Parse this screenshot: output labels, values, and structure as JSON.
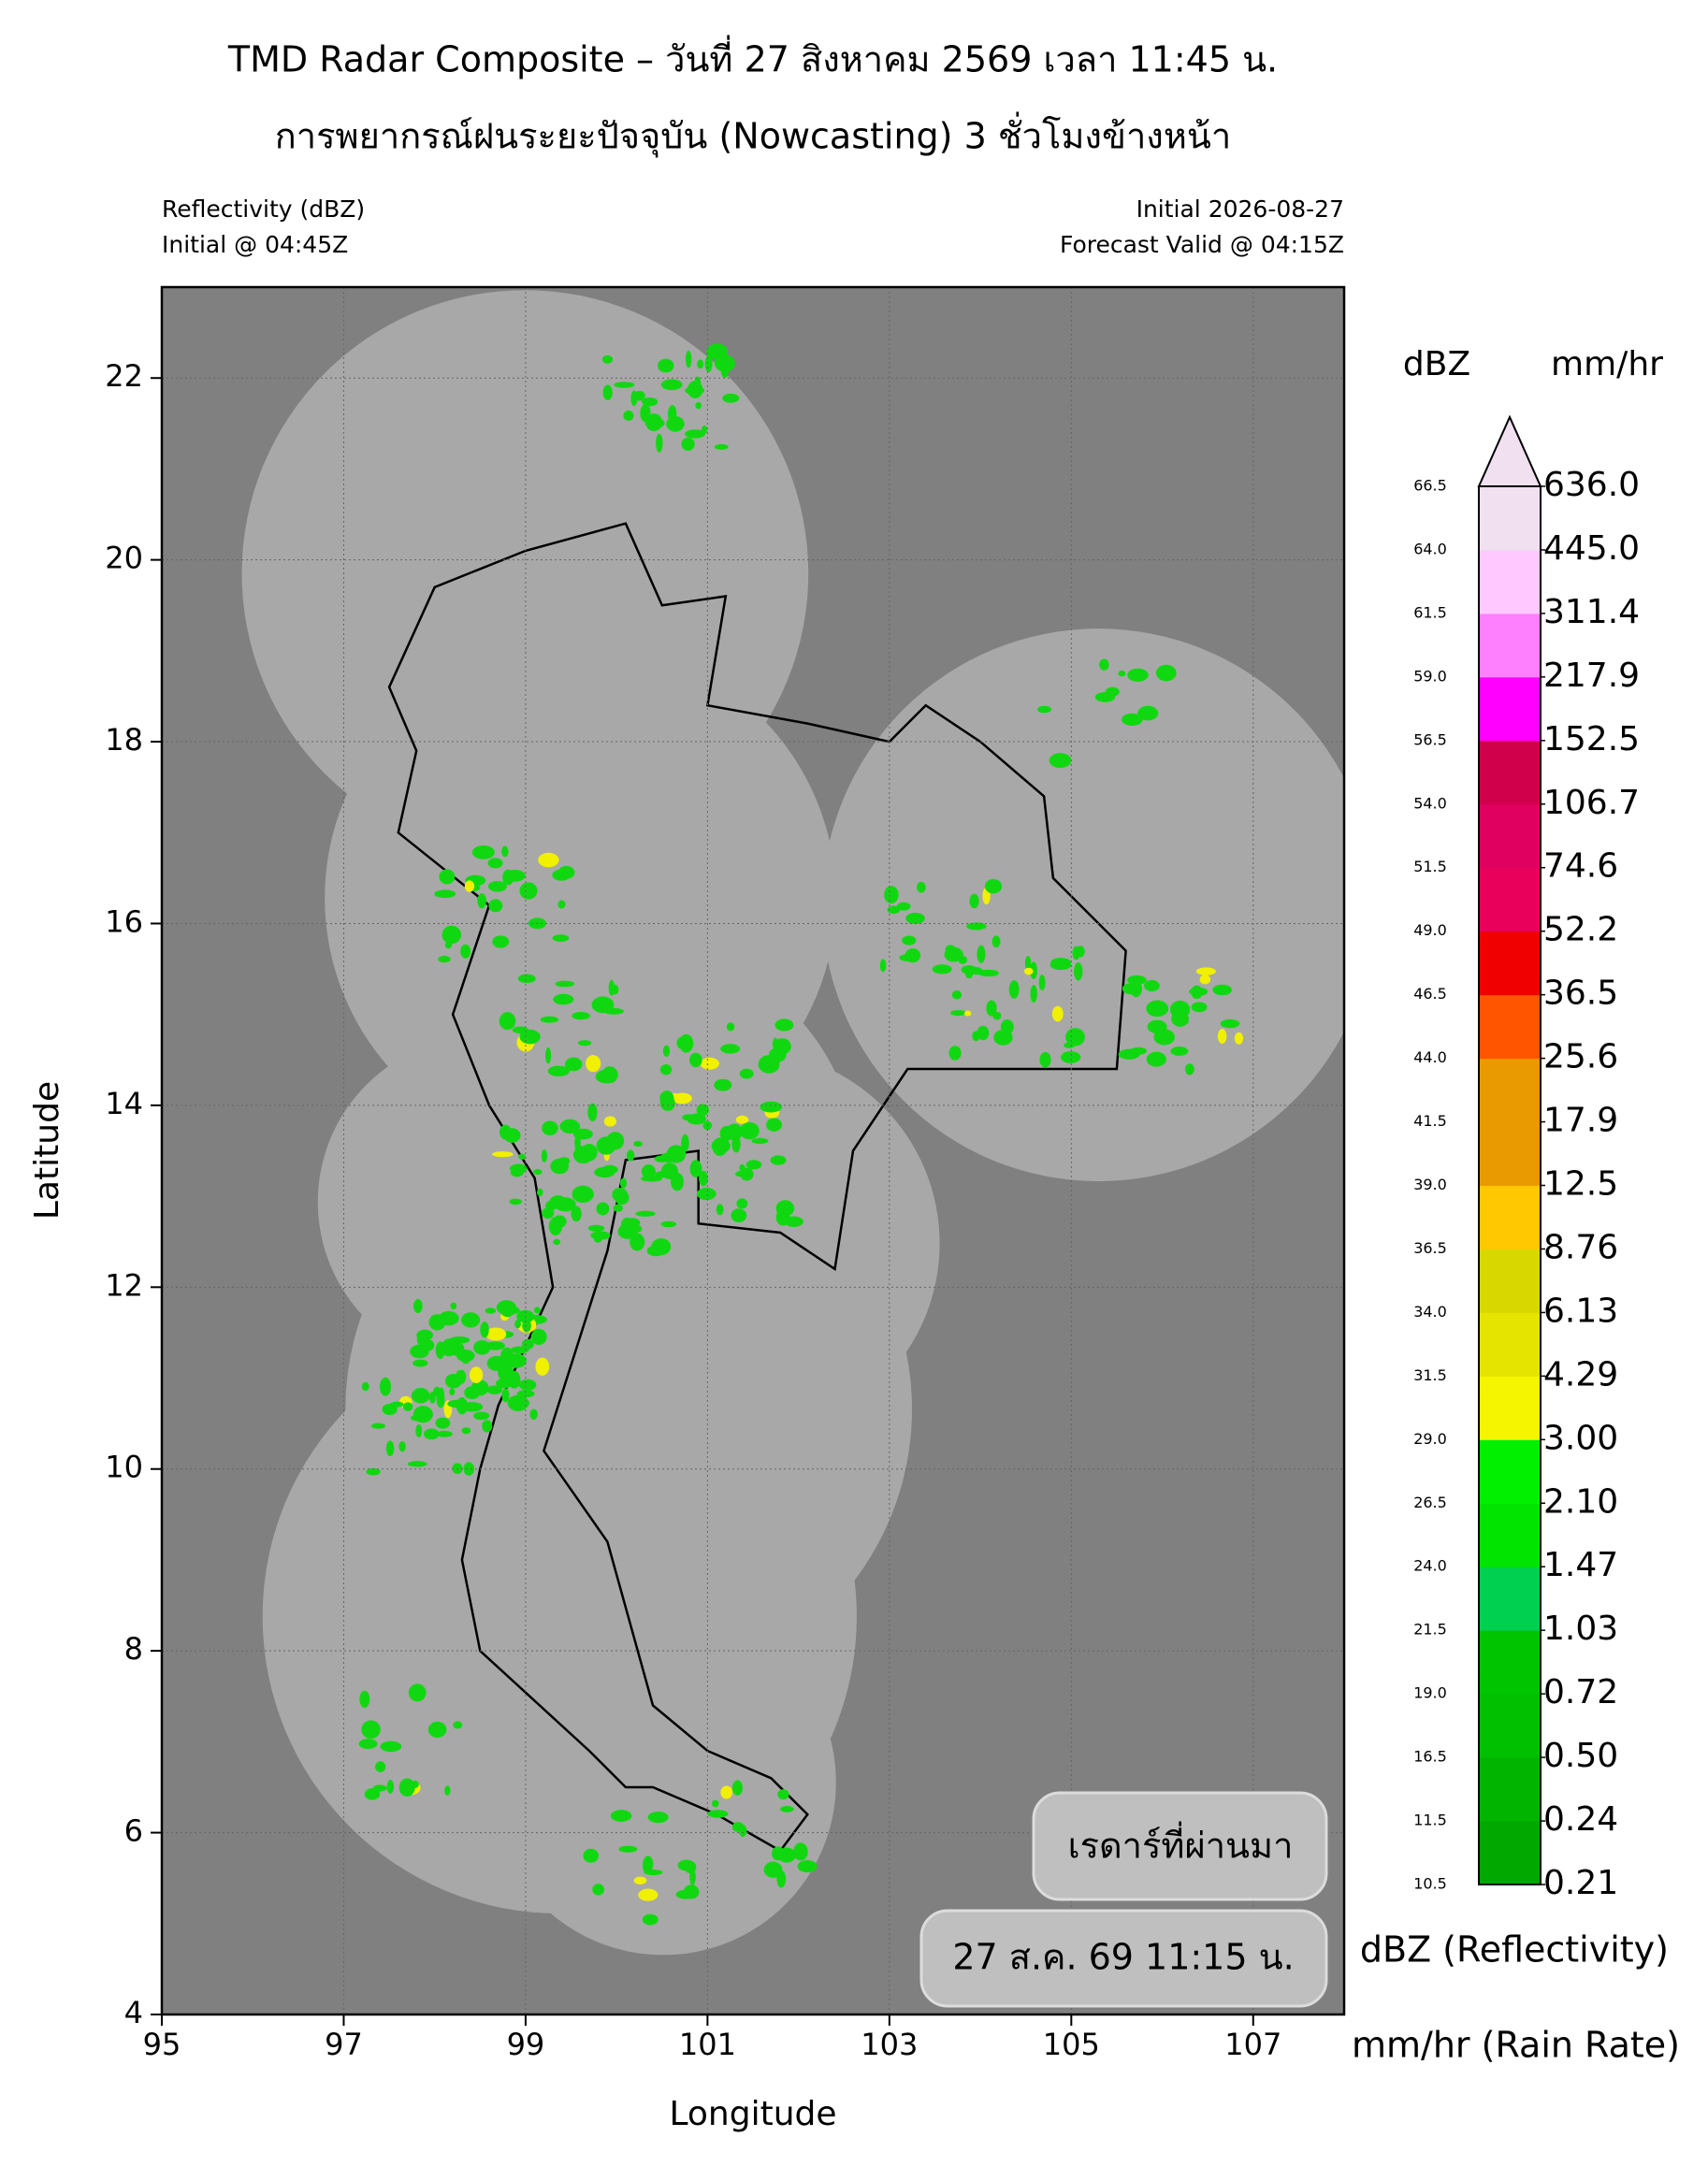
{
  "chart_data": {
    "type": "radar-map",
    "title": "TMD Radar Composite – วันที่ 27 สิงหาคม 2569 เวลา 11:45 น.",
    "subtitle": "การพยากรณ์ฝนระยะปัจจุบัน (Nowcasting) 3 ชั่วโมงข้างหน้า",
    "left_info": [
      "Reflectivity (dBZ)",
      "Initial @ 04:45Z"
    ],
    "right_info": [
      "Initial 2026-08-27",
      "Forecast Valid @ 04:15Z"
    ],
    "xlabel": "Longitude",
    "ylabel": "Latitude",
    "xlim": [
      95,
      108
    ],
    "xticks": [
      95,
      97,
      99,
      101,
      103,
      105,
      107
    ],
    "ylim": [
      4,
      23
    ],
    "yticks": [
      4,
      6,
      8,
      10,
      12,
      14,
      16,
      18,
      20,
      22
    ],
    "grid": true,
    "colorbar": {
      "units_left": "dBZ",
      "units_right": "mm/hr",
      "dbz_levels": [
        10.5,
        11.5,
        16.5,
        {
          "value": 19,
          "label": "19.0"
        },
        21.5,
        {
          "value": 24,
          "label": "24.0"
        },
        26.5,
        {
          "value": 29,
          "label": "29.0"
        },
        31.5,
        {
          "value": 34,
          "label": "34.0"
        },
        36.5,
        {
          "value": 39,
          "label": "39.0"
        },
        41.5,
        {
          "value": 44,
          "label": "44.0"
        },
        46.5,
        {
          "value": 49,
          "label": "49.0"
        },
        51.5,
        {
          "value": 54,
          "label": "54.0"
        },
        56.5,
        {
          "value": 59,
          "label": "59.0"
        },
        61.5,
        {
          "value": 64,
          "label": "64.0"
        },
        66.5
      ],
      "rain_rates": [
        0.21,
        0.24,
        {
          "value": 0.5,
          "label": "0.50"
        },
        0.72,
        1.03,
        1.47,
        {
          "value": 2.1,
          "label": "2.10"
        },
        {
          "value": 3,
          "label": "3.00"
        },
        4.29,
        6.13,
        8.76,
        12.5,
        17.9,
        25.6,
        36.5,
        52.2,
        74.6,
        106.7,
        152.5,
        217.9,
        311.4,
        {
          "value": 445,
          "label": "445.0"
        },
        {
          "value": 636,
          "label": "636.0"
        }
      ],
      "colors": [
        "#00a800",
        "#00b400",
        "#00c000",
        "#00c400",
        "#00d050",
        "#00e400",
        "#00f000",
        "#f5f500",
        "#e4e400",
        "#d8d800",
        "#ffc800",
        "#e89a00",
        "#e89a00",
        "#ff5500",
        "#f00000",
        "#e8005a",
        "#e00060",
        "#d0004a",
        "#ff00ff",
        "#ff80ff",
        "#ffc8ff",
        "#f0e0f0"
      ],
      "extend_color": "#f0e0f0",
      "footnotes": [
        "dBZ (Reflectivity)",
        "mm/hr (Rain Rate)"
      ]
    },
    "buttons": [
      "เรดาร์ที่ผ่านมา",
      "27 ส.ค. 69 11:15 น."
    ]
  }
}
